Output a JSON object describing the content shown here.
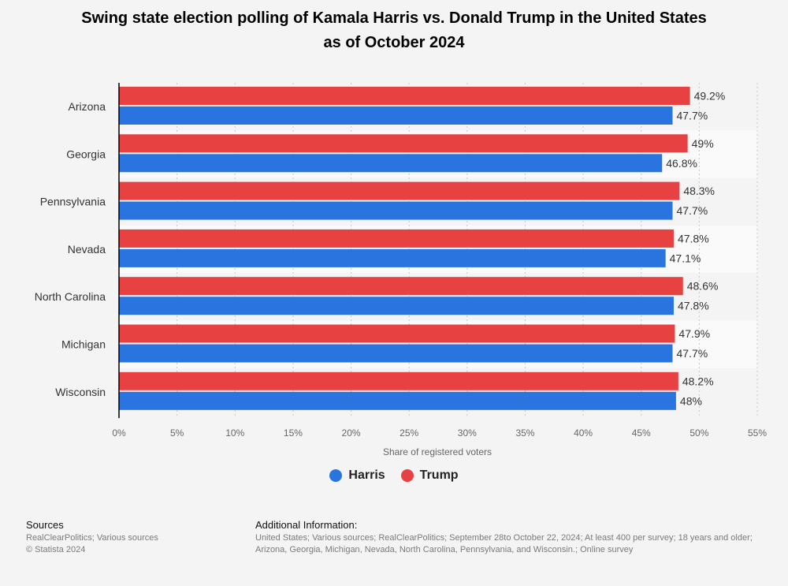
{
  "chart_data": {
    "type": "bar",
    "orientation": "horizontal",
    "title_line1": "Swing state election polling of Kamala Harris vs. Donald Trump in the United States",
    "title_line2": "as of October 2024",
    "categories": [
      "Arizona",
      "Georgia",
      "Pennsylvania",
      "Nevada",
      "North Carolina",
      "Michigan",
      "Wisconsin"
    ],
    "series": [
      {
        "name": "Trump",
        "color": "#e84142",
        "values": [
          49.2,
          49,
          48.3,
          47.8,
          48.6,
          47.9,
          48.2
        ],
        "labels": [
          "49.2%",
          "49%",
          "48.3%",
          "47.8%",
          "48.6%",
          "47.9%",
          "48.2%"
        ]
      },
      {
        "name": "Harris",
        "color": "#2a74e0",
        "values": [
          47.7,
          46.8,
          47.7,
          47.1,
          47.8,
          47.7,
          48
        ],
        "labels": [
          "47.7%",
          "46.8%",
          "47.7%",
          "47.1%",
          "47.8%",
          "47.7%",
          "48%"
        ]
      }
    ],
    "xlabel": "Share of registered voters",
    "xlim": [
      0,
      55
    ],
    "xticks": [
      0,
      5,
      10,
      15,
      20,
      25,
      30,
      35,
      40,
      45,
      50,
      55
    ],
    "xtick_labels": [
      "0%",
      "5%",
      "10%",
      "15%",
      "20%",
      "25%",
      "30%",
      "35%",
      "40%",
      "45%",
      "50%",
      "55%"
    ],
    "grid": true,
    "legend": [
      {
        "name": "Harris",
        "color": "#2a74e0"
      },
      {
        "name": "Trump",
        "color": "#e84142"
      }
    ],
    "legend_position": "bottom"
  },
  "footer": {
    "sources_title": "Sources",
    "sources_line1": "RealClearPolitics; Various sources",
    "sources_line2": "© Statista 2024",
    "info_title": "Additional Information:",
    "info_line1": "United States; Various sources; RealClearPolitics; September 28to October 22, 2024; At least 400 per survey; 18 years and older;",
    "info_line2": "Arizona, Georgia, Michigan, Nevada, North Carolina, Pennsylvania, and Wisconsin.; Online survey"
  }
}
